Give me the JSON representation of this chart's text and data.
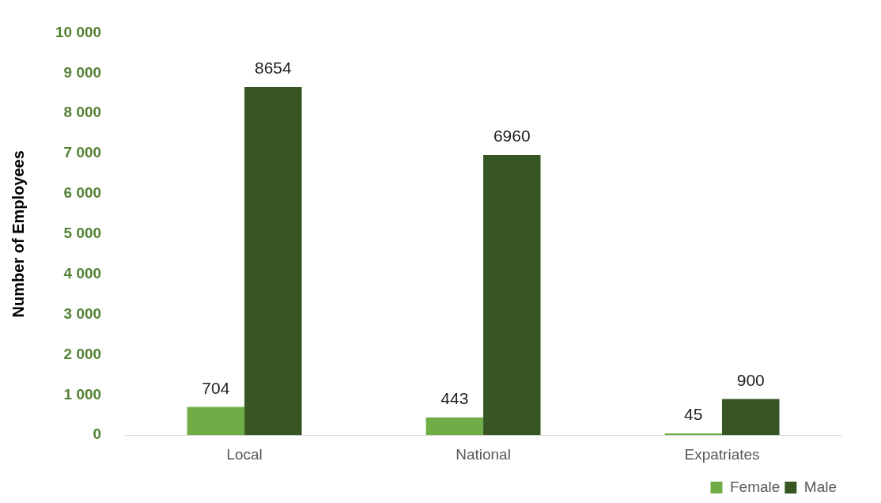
{
  "chart_data": {
    "type": "bar",
    "ylabel": "Number of Employees",
    "categories": [
      "Local",
      "National",
      "Expatriates"
    ],
    "series": [
      {
        "name": "Female",
        "color": "#70ad47",
        "values": [
          704,
          443,
          45
        ]
      },
      {
        "name": "Male",
        "color": "#375623",
        "values": [
          8654,
          6960,
          900
        ]
      }
    ],
    "ylim": [
      0,
      10000
    ],
    "yticks": [
      0,
      {
        "value": 1000,
        "label": "1 000"
      },
      {
        "value": 2000,
        "label": "2 000"
      },
      {
        "value": 3000,
        "label": "3 000"
      },
      {
        "value": 4000,
        "label": "4 000"
      },
      {
        "value": 5000,
        "label": "5 000"
      },
      {
        "value": 6000,
        "label": "6 000"
      },
      {
        "value": 7000,
        "label": "7 000"
      },
      {
        "value": 8000,
        "label": "8 000"
      },
      {
        "value": 9000,
        "label": "9 000"
      },
      {
        "value": 10000,
        "label": "10 000"
      }
    ],
    "grid": false,
    "legend": "bottom right",
    "data_labels": true
  }
}
